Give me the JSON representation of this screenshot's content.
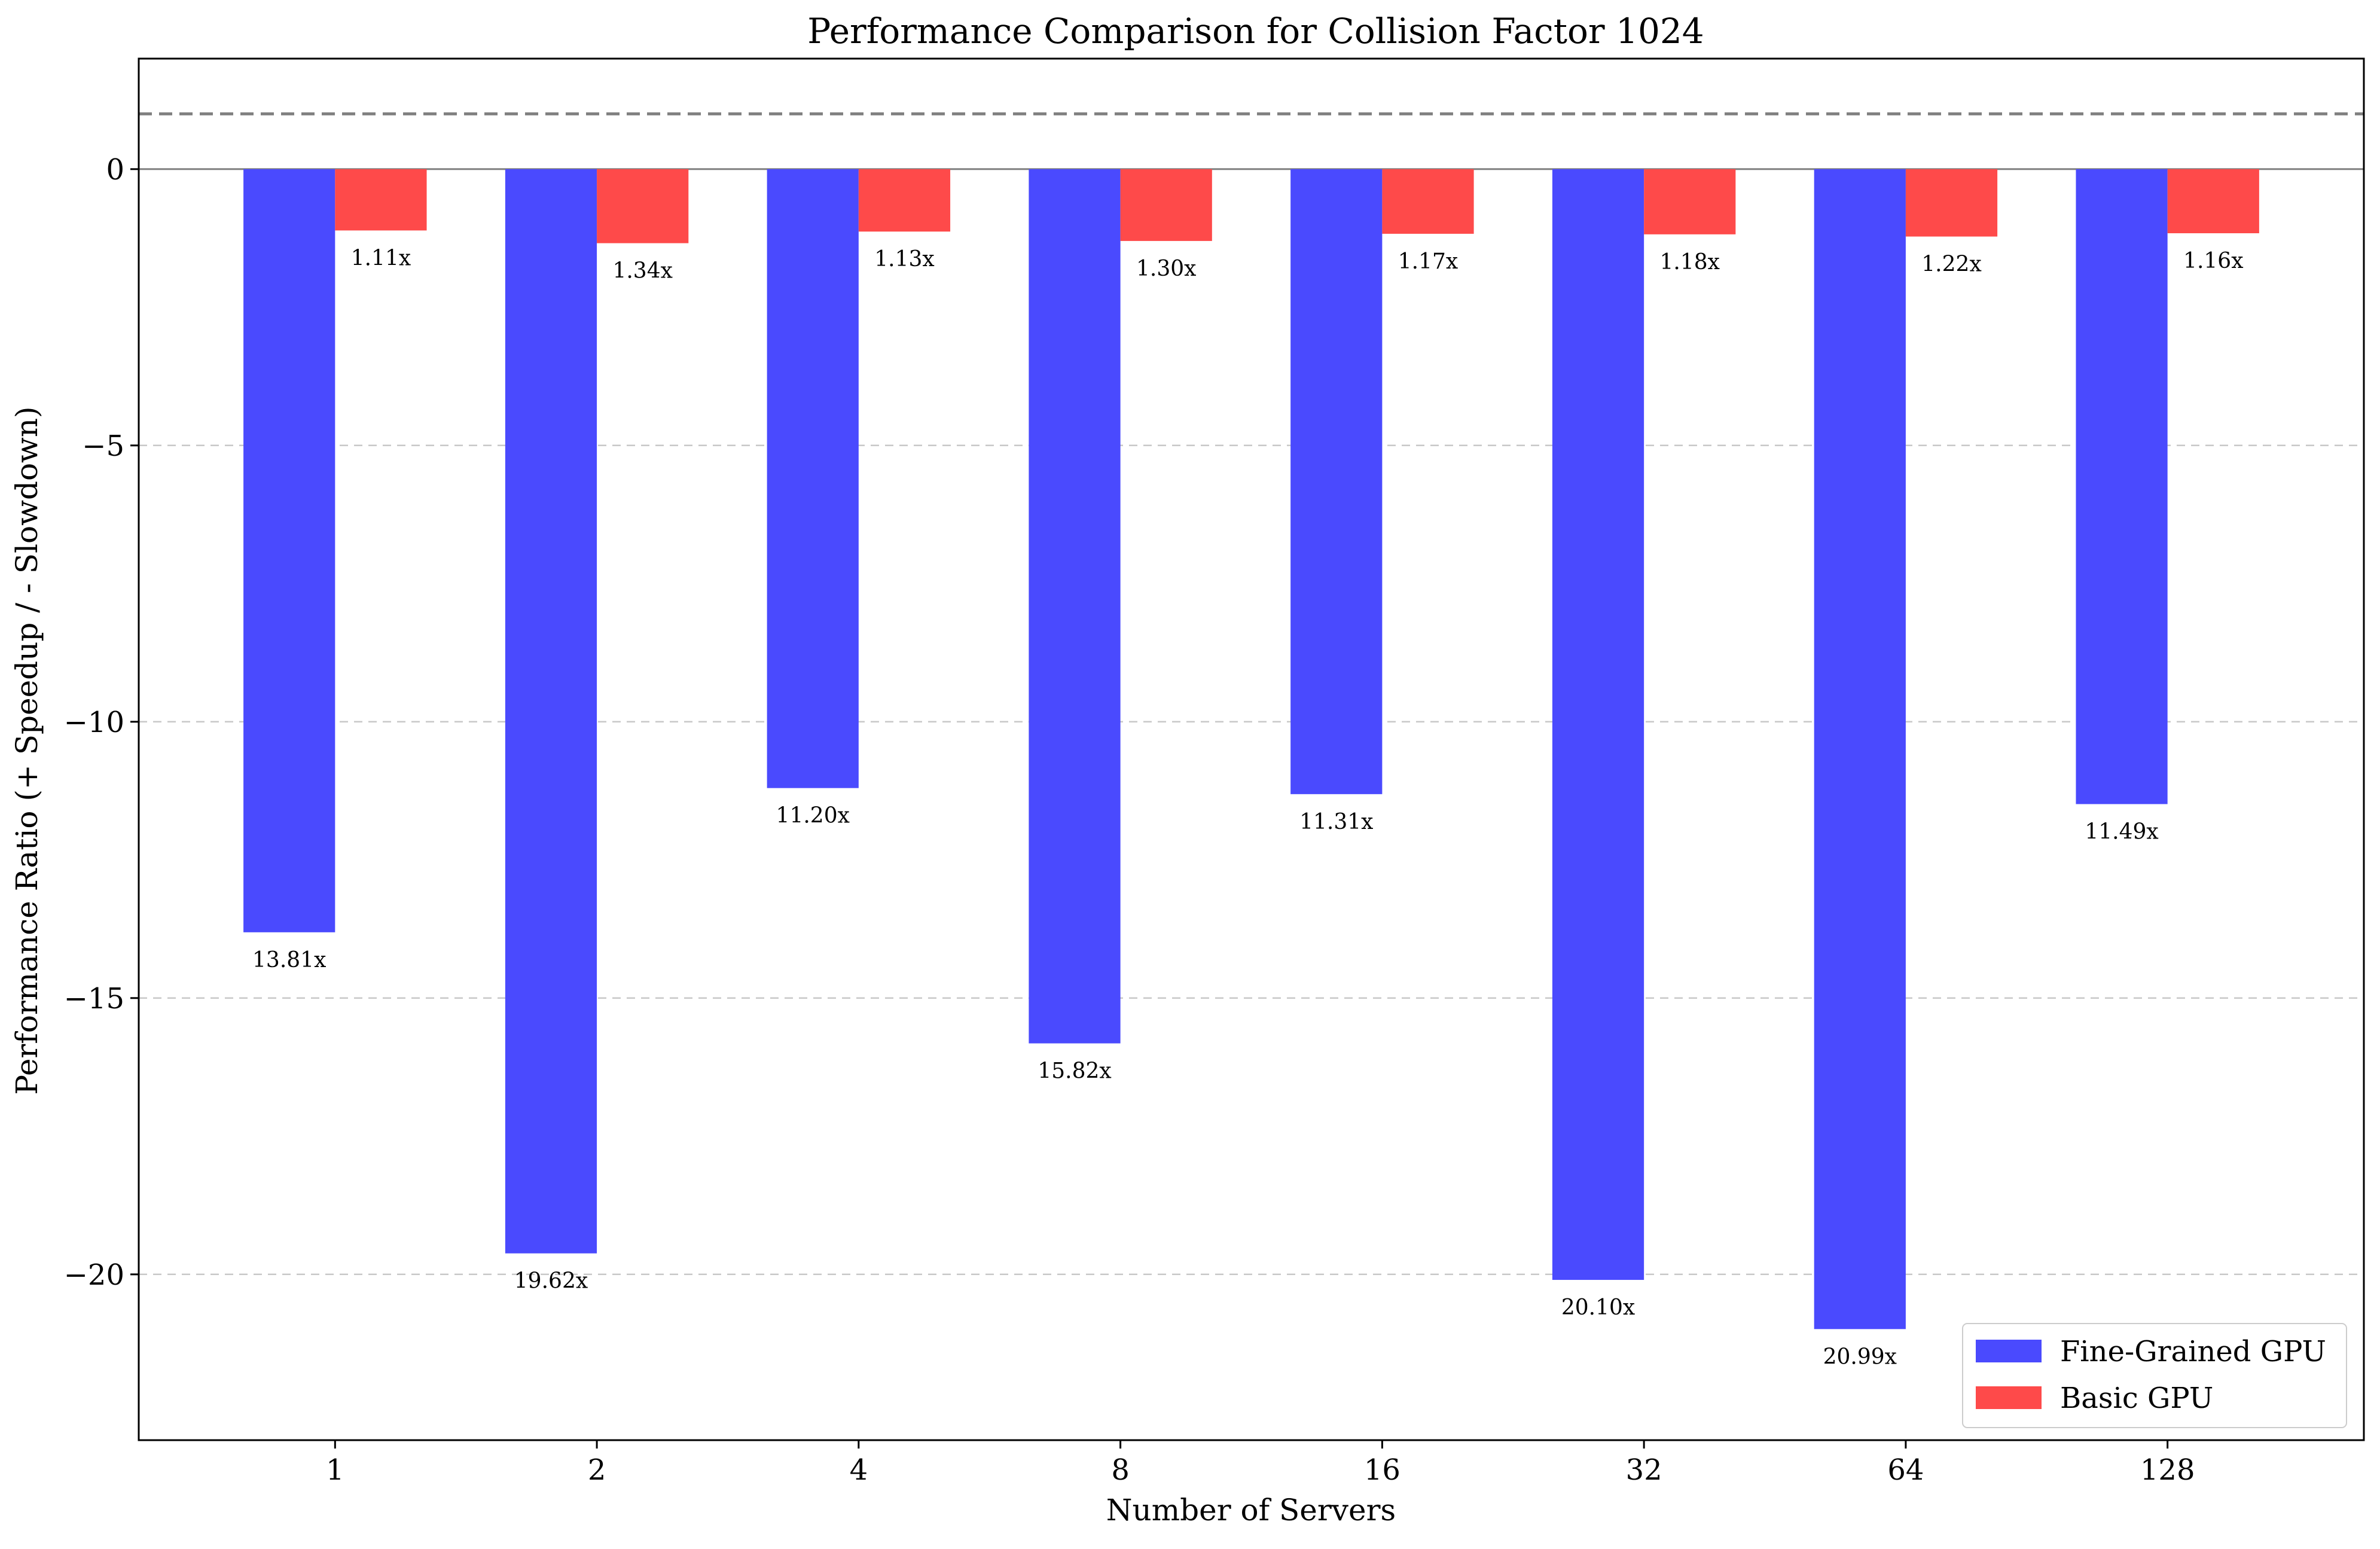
{
  "colors": {
    "fine_grained": "#4a4afe",
    "basic": "#fe4a4a",
    "grid": "#c8c8c8",
    "reference_line": "#808080",
    "zero_line": "#808080"
  },
  "chart_data": {
    "type": "bar",
    "title": "Performance Comparison for Collision Factor 1024",
    "xlabel": "Number of Servers",
    "ylabel": "Performance Ratio (+ Speedup / - Slowdown)",
    "categories": [
      "1",
      "2",
      "4",
      "8",
      "16",
      "32",
      "64",
      "128"
    ],
    "series": [
      {
        "name": "Fine-Grained GPU",
        "color": "#4a4afe",
        "values": [
          -13.81,
          -19.62,
          -11.2,
          -15.82,
          -11.31,
          -20.1,
          -20.99,
          -11.49
        ],
        "labels": [
          "13.81x",
          "19.62x",
          "11.20x",
          "15.82x",
          "11.31x",
          "20.10x",
          "20.99x",
          "11.49x"
        ]
      },
      {
        "name": "Basic GPU",
        "color": "#fe4a4a",
        "values": [
          -1.11,
          -1.34,
          -1.13,
          -1.3,
          -1.17,
          -1.18,
          -1.22,
          -1.16
        ],
        "labels": [
          "1.11x",
          "1.34x",
          "1.13x",
          "1.30x",
          "1.17x",
          "1.18x",
          "1.22x",
          "1.16x"
        ]
      }
    ],
    "ylim": [
      -23,
      2
    ],
    "yticks": [
      0,
      -5,
      -10,
      -15,
      -20
    ],
    "ytick_labels": [
      "0",
      "−5",
      "−10",
      "−15",
      "−20"
    ],
    "reference_lines": [
      {
        "y": 1,
        "style": "dashed",
        "color": "#808080"
      },
      {
        "y": 0,
        "style": "solid",
        "color": "#808080"
      }
    ],
    "grid": "y-dashed",
    "legend": "lower-right"
  }
}
